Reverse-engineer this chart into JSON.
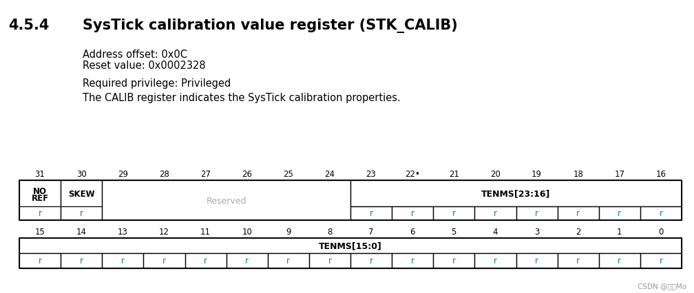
{
  "title_section": "4.5.4",
  "title_text": "SysTick calibration value register (STK_CALIB)",
  "info_lines": [
    "Address offset: 0x0C",
    "Reset value: 0x0002328",
    "Required privilege: Privileged",
    "The CALIB register indicates the SysTick calibration properties."
  ],
  "bg_color": "#ffffff",
  "text_color": "#000000",
  "teal_color": "#008080",
  "gray_color": "#aaaaaa",
  "title_color": "#000000",
  "upper_bits": [
    "31",
    "30",
    "29",
    "28",
    "27",
    "26",
    "25",
    "24",
    "23",
    "22•",
    "21",
    "20",
    "19",
    "18",
    "17",
    "16"
  ],
  "lower_bits": [
    "15",
    "14",
    "13",
    "12",
    "11",
    "10",
    "9",
    "8",
    "7",
    "6",
    "5",
    "4",
    "3",
    "2",
    "1",
    "0"
  ],
  "watermark": "CSDN @月明Mo"
}
